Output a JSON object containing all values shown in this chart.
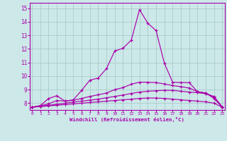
{
  "xlabel": "Windchill (Refroidissement éolien,°C)",
  "background_color": "#cce8e8",
  "grid_color": "#aacccc",
  "line_color": "#aa00aa",
  "x_ticks": [
    0,
    1,
    2,
    3,
    4,
    5,
    6,
    7,
    8,
    9,
    10,
    11,
    12,
    13,
    14,
    15,
    16,
    17,
    18,
    19,
    20,
    21,
    22,
    23
  ],
  "y_ticks": [
    8,
    9,
    10,
    11,
    12,
    13,
    14,
    15
  ],
  "ylim": [
    7.5,
    15.4
  ],
  "xlim": [
    -0.3,
    23.3
  ],
  "line_flat_low": [
    7.7,
    7.75,
    7.8,
    7.85,
    7.9,
    7.95,
    8.0,
    8.05,
    8.1,
    8.15,
    8.2,
    8.25,
    8.3,
    8.35,
    8.38,
    8.38,
    8.35,
    8.3,
    8.25,
    8.2,
    8.15,
    8.1,
    8.0,
    7.7
  ],
  "line_mid_low": [
    7.7,
    7.78,
    7.85,
    7.92,
    8.0,
    8.08,
    8.15,
    8.22,
    8.3,
    8.4,
    8.5,
    8.6,
    8.72,
    8.82,
    8.88,
    8.92,
    8.95,
    8.95,
    8.88,
    8.82,
    8.78,
    8.7,
    8.5,
    7.72
  ],
  "line_mid_high": [
    7.7,
    7.82,
    7.95,
    8.2,
    8.15,
    8.22,
    8.35,
    8.5,
    8.62,
    8.75,
    9.0,
    9.15,
    9.4,
    9.55,
    9.55,
    9.52,
    9.42,
    9.3,
    9.22,
    9.12,
    8.85,
    8.75,
    8.45,
    7.72
  ],
  "line_high": [
    7.7,
    7.82,
    8.35,
    8.55,
    8.15,
    8.25,
    8.95,
    9.7,
    9.85,
    10.55,
    11.85,
    12.05,
    12.65,
    14.9,
    13.9,
    13.35,
    10.95,
    9.55,
    9.52,
    9.52,
    8.85,
    8.75,
    8.35,
    7.7
  ]
}
